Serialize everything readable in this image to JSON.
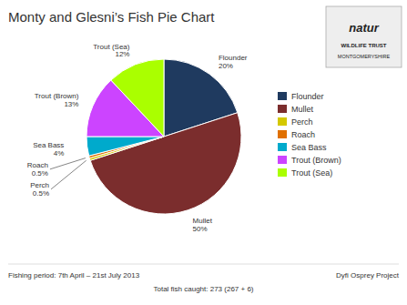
{
  "chart_data": {
    "type": "pie",
    "title": "Monty and Glesni’s Fish Pie Chart",
    "categories": [
      "Flounder",
      "Mullet",
      "Perch",
      "Roach",
      "Sea Bass",
      "Trout (Brown)",
      "Trout (Sea)"
    ],
    "values": [
      20,
      50,
      0.5,
      0.5,
      4,
      13,
      12
    ],
    "value_labels": [
      "20%",
      "50%",
      "0.5%",
      "0.5%",
      "4%",
      "13%",
      "12%"
    ],
    "colors": [
      "#1f3a5f",
      "#7b2d2d",
      "#d4c800",
      "#e07000",
      "#00aacc",
      "#cc44ff",
      "#aaff00"
    ],
    "data_labels": true,
    "legend": "right",
    "annotations": [
      "Fishing period:  7th April – 21st July 2013",
      "Total fish caught:  273 (267 + 6)",
      "Dyfi Osprey Project",
      "natur",
      "WILDLIFE TRUST",
      "MONTGOMERYSHIRE"
    ]
  }
}
